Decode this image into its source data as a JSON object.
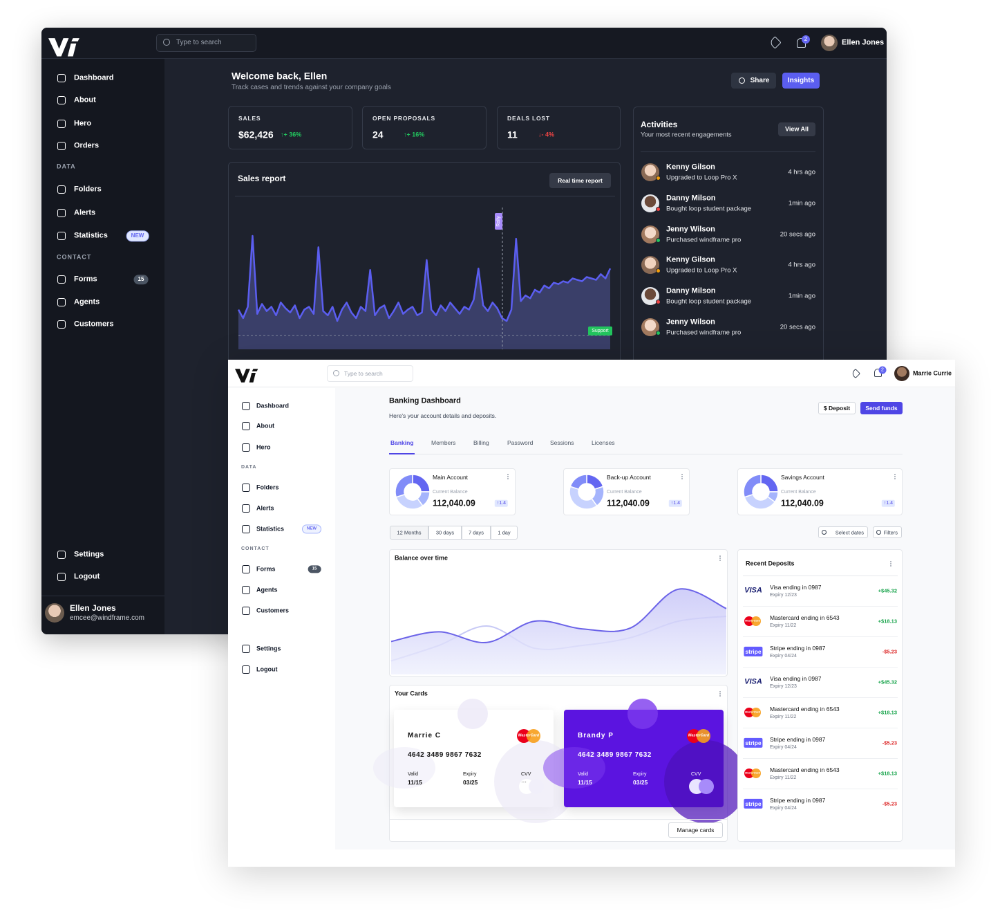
{
  "dark": {
    "search": "Type to search",
    "notifications": "2",
    "user": "Ellen Jones",
    "nav": [
      {
        "label": "Dashboard"
      },
      {
        "label": "About"
      },
      {
        "label": "Hero"
      },
      {
        "label": "Orders"
      },
      {
        "section": "DATA"
      },
      {
        "label": "Folders"
      },
      {
        "label": "Alerts"
      },
      {
        "label": "Statistics",
        "badge": "NEW"
      },
      {
        "section": "CONTACT"
      },
      {
        "label": "Forms",
        "badge": "15"
      },
      {
        "label": "Agents"
      },
      {
        "label": "Customers"
      }
    ],
    "nav_bottom": [
      "Settings",
      "Logout"
    ],
    "account": {
      "name": "Ellen Jones",
      "email": "emcee@windframe.com"
    },
    "welcome": {
      "title": "Welcome back, Ellen",
      "subtitle": "Track cases and trends against your company goals"
    },
    "buttons": [
      "Share",
      "Insights"
    ],
    "stats": [
      {
        "label": "SALES",
        "value": "$62,426",
        "change": "↑+ 36%"
      },
      {
        "label": "OPEN PROPOSALS",
        "value": "24",
        "change": "↑+ 16%"
      },
      {
        "label": "DEALS LOST",
        "value": "11",
        "change": "↓- 4%"
      }
    ],
    "sales_report": {
      "title": "Sales report",
      "button": "Real time report",
      "rally": "Rally",
      "support": "Support",
      "ylim": [
        0,
        100
      ],
      "values": [
        28,
        22,
        30,
        80,
        25,
        32,
        27,
        30,
        24,
        33,
        29,
        26,
        31,
        22,
        28,
        30,
        25,
        72,
        27,
        24,
        30,
        20,
        28,
        33,
        26,
        22,
        30,
        27,
        56,
        24,
        29,
        31,
        22,
        27,
        33,
        25,
        28,
        30,
        24,
        26,
        63,
        28,
        24,
        31,
        27,
        33,
        29,
        25,
        30,
        28,
        35,
        57,
        31,
        27,
        33,
        29,
        22,
        20,
        28,
        78,
        34,
        38,
        36,
        42,
        40,
        45,
        43,
        47,
        46,
        48,
        47,
        50,
        49,
        48,
        51,
        50,
        49,
        53,
        50,
        57
      ]
    },
    "activities": {
      "title": "Activities",
      "subtitle": "Your most recent engagements",
      "button": "View All",
      "items": [
        {
          "name": "Kenny Gilson",
          "action": "Upgraded to Loop Pro X",
          "time": "4 hrs ago"
        },
        {
          "name": "Danny Milson",
          "action": "Bought loop student package",
          "time": "1min ago"
        },
        {
          "name": "Jenny Wilson",
          "action": "Purchased windframe pro",
          "time": "20 secs ago"
        },
        {
          "name": "Kenny Gilson",
          "action": "Upgraded to Loop Pro X",
          "time": "4 hrs ago"
        },
        {
          "name": "Danny Milson",
          "action": "Bought loop student package",
          "time": "1min ago"
        },
        {
          "name": "Jenny Wilson",
          "action": "Purchased windframe pro",
          "time": "20 secs ago"
        }
      ]
    }
  },
  "light": {
    "search": "Type to search",
    "notifications": "2",
    "user": "Marrie Currie",
    "nav": [
      {
        "label": "Dashboard"
      },
      {
        "label": "About"
      },
      {
        "label": "Hero"
      },
      {
        "section": "DATA"
      },
      {
        "label": "Folders"
      },
      {
        "label": "Alerts"
      },
      {
        "label": "Statistics",
        "badge": "NEW"
      },
      {
        "section": "CONTACT"
      },
      {
        "label": "Forms",
        "badge": "15"
      },
      {
        "label": "Agents"
      },
      {
        "label": "Customers"
      }
    ],
    "nav_bottom": [
      "Settings",
      "Logout"
    ],
    "title": "Banking Dashboard",
    "subtitle": "Here's your account details and deposits.",
    "buttons": [
      "$ Deposit",
      "Send funds"
    ],
    "tabs": [
      "Banking",
      "Members",
      "Billing",
      "Password",
      "Sessions",
      "Licenses"
    ],
    "donut_colors": [
      "#6366f1",
      "#a5b4fc",
      "#c7d2fe",
      "#818cf8"
    ],
    "accounts": [
      {
        "name": "Main Account",
        "balance_label": "Current Balance",
        "balance": "112,040.09",
        "change": "↑1.4",
        "segments": [
          25,
          15,
          30,
          30
        ]
      },
      {
        "name": "Back-up Account",
        "balance_label": "Current Balance",
        "balance": "112,040.09",
        "change": "↑1.4",
        "segments": [
          20,
          20,
          40,
          20
        ]
      },
      {
        "name": "Savings Account",
        "balance_label": "Current Balance",
        "balance": "112,040.09",
        "change": "↑1.4",
        "segments": [
          25,
          10,
          35,
          30
        ]
      }
    ],
    "ranges": [
      "12 Months",
      "30 days",
      "7 days",
      "1 day"
    ],
    "filters": [
      "Select dates",
      "Filters"
    ],
    "balance_chart": {
      "title": "Balance over time",
      "ylim": [
        0,
        100
      ],
      "series": [
        {
          "color": "#c7c9f5",
          "values": [
            14,
            30,
            50,
            27,
            30,
            38,
            55,
            60
          ]
        },
        {
          "color": "#6b63e8",
          "values": [
            34,
            44,
            33,
            55,
            47,
            48,
            88,
            68
          ]
        }
      ]
    },
    "cards": {
      "title": "Your Cards",
      "button": "Manage cards",
      "items": [
        {
          "holder": "Marrie C",
          "number": "4642 3489 9867 7632",
          "valid_label": "Valid",
          "valid": "11/15",
          "expiry_label": "Expiry",
          "expiry": "03/25",
          "cvv_label": "CVV",
          "cvv": "···",
          "logo": "MasterCard"
        },
        {
          "holder": "Brandy P",
          "number": "4642 3489 9867 7632",
          "valid_label": "Valid",
          "valid": "11/15",
          "expiry_label": "Expiry",
          "expiry": "03/25",
          "cvv_label": "CVV",
          "logo": "MasterCard"
        }
      ]
    },
    "deposits": {
      "title": "Recent Deposits",
      "items": [
        {
          "logo": "VISA",
          "name": "Visa ending in 0987",
          "expiry": "Expiry 12/23",
          "amount": "+$45.32"
        },
        {
          "logo": "MasterCard",
          "name": "Mastercard ending in 6543",
          "expiry": "Expiry 11/22",
          "amount": "+$18.13"
        },
        {
          "logo": "stripe",
          "name": "Stripe ending in 0987",
          "expiry": "Expiry 04/24",
          "amount": "-$5.23"
        },
        {
          "logo": "VISA",
          "name": "Visa ending in 0987",
          "expiry": "Expiry 12/23",
          "amount": "+$45.32"
        },
        {
          "logo": "MasterCard",
          "name": "Mastercard ending in 6543",
          "expiry": "Expiry 11/22",
          "amount": "+$18.13"
        },
        {
          "logo": "stripe",
          "name": "Stripe ending in 0987",
          "expiry": "Expiry 04/24",
          "amount": "-$5.23"
        },
        {
          "logo": "MasterCard",
          "name": "Mastercard ending in 6543",
          "expiry": "Expiry 11/22",
          "amount": "+$18.13"
        },
        {
          "logo": "stripe",
          "name": "Stripe ending in 0987",
          "expiry": "Expiry 04/24",
          "amount": "-$5.23"
        }
      ]
    }
  }
}
